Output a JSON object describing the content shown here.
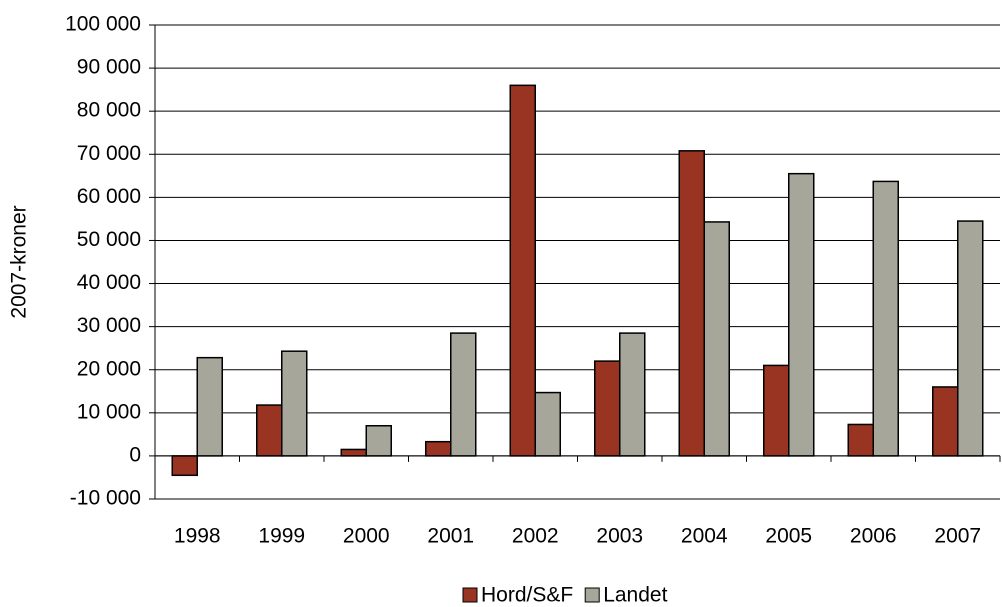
{
  "chart_data": {
    "type": "bar",
    "y_label": "2007-kroner",
    "categories": [
      "1998",
      "1999",
      "2000",
      "2001",
      "2002",
      "2003",
      "2004",
      "2005",
      "2006",
      "2007"
    ],
    "series": [
      {
        "name": "Hord/S&F",
        "color": "#993322",
        "values": [
          -4500,
          11800,
          1500,
          3300,
          86000,
          22000,
          70800,
          21000,
          7300,
          16000
        ]
      },
      {
        "name": "Landet",
        "color": "#a6a69a",
        "values": [
          22800,
          24300,
          7000,
          28500,
          14700,
          28500,
          54300,
          65500,
          63700,
          54500
        ]
      }
    ],
    "ylim": [
      -10000,
      100000
    ],
    "yticks": [
      {
        "value": -10000,
        "label": "-10 000"
      },
      0,
      {
        "value": 10000,
        "label": "10 000"
      },
      {
        "value": 20000,
        "label": "20 000"
      },
      {
        "value": 30000,
        "label": "30 000"
      },
      {
        "value": 40000,
        "label": "40 000"
      },
      {
        "value": 50000,
        "label": "50 000"
      },
      {
        "value": 60000,
        "label": "60 000"
      },
      {
        "value": 70000,
        "label": "70 000"
      },
      {
        "value": 80000,
        "label": "80 000"
      },
      {
        "value": 90000,
        "label": "90 000"
      },
      {
        "value": 100000,
        "label": "100 000"
      }
    ],
    "grid": true
  }
}
